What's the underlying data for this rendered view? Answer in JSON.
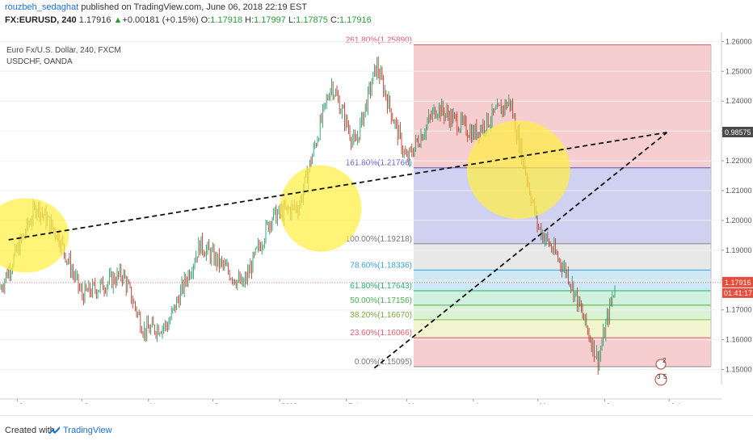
{
  "header": {
    "author": "rouzbeh_sedaghat",
    "published_text": "published on TradingView.com, June 06, 2018 22:19 EST",
    "symbol": "FX:EURUSD, 240",
    "last": "1.17916",
    "change": "+0.00181 (+0.15%)",
    "o_label": "O:",
    "o_value": "1.17918",
    "h_label": "H:",
    "h_value": "1.17997",
    "l_label": "L:",
    "l_value": "1.17875",
    "c_label": "C:",
    "c_value": "1.17916"
  },
  "legend": {
    "line1": "Euro Fx/U.S. Dollar, 240, FXCM",
    "line2": "USDCHF, OANDA"
  },
  "footer": {
    "created_with": "Created with",
    "brand": "TradingView"
  },
  "colors": {
    "up_candle": "#2a9d6a",
    "down_candle": "#c0392b",
    "highlight_circle": "#ffee44",
    "price_badge": "#e74c3c",
    "usdchf_badge": "#4a4a4a"
  },
  "chart_data": {
    "type": "candlestick",
    "symbol": "EURUSD",
    "interval": "240",
    "x_ticks": [
      "Sep",
      "Oct",
      "Nov",
      "Dec",
      "2018",
      "Feb",
      "Mar",
      "Apr",
      "May",
      "Jun",
      "Jul"
    ],
    "y_ticks": [
      "1.26000",
      "1.25000",
      "1.24000",
      "1.23000",
      "1.22000",
      "1.21000",
      "1.20000",
      "1.19000",
      "1.18000",
      "1.17000",
      "1.16000",
      "1.15000"
    ],
    "ylim": [
      1.145,
      1.262
    ],
    "last_price": 1.17916,
    "last_price_label": "1.17916",
    "countdown": "01:41:17",
    "overlay_label": "0.98575",
    "trend_path": [
      [
        "Aug 24",
        1.177
      ],
      [
        "Sep 01",
        1.19
      ],
      [
        "Sep 10",
        1.205
      ],
      [
        "Sep 20",
        1.195
      ],
      [
        "Oct 01",
        1.175
      ],
      [
        "Oct 10",
        1.178
      ],
      [
        "Oct 20",
        1.182
      ],
      [
        "Oct 30",
        1.163
      ],
      [
        "Nov 10",
        1.165
      ],
      [
        "Nov 25",
        1.192
      ],
      [
        "Dec 05",
        1.185
      ],
      [
        "Dec 15",
        1.178
      ],
      [
        "Dec 28",
        1.201
      ],
      [
        "Jan 10",
        1.205
      ],
      [
        "Jan 25",
        1.246
      ],
      [
        "Feb 05",
        1.225
      ],
      [
        "Feb 15",
        1.252
      ],
      [
        "Mar 01",
        1.22
      ],
      [
        "Mar 15",
        1.238
      ],
      [
        "Apr 01",
        1.229
      ],
      [
        "Apr 18",
        1.24
      ],
      [
        "May 01",
        1.198
      ],
      [
        "May 15",
        1.182
      ],
      [
        "May 29",
        1.153
      ],
      [
        "Jun 06",
        1.179
      ]
    ],
    "fibonacci": {
      "levels": [
        {
          "label": "261.80%(1.25890)",
          "ratio": 2.618,
          "price": 1.2589,
          "line_color": "#e05b6b",
          "fill": "#f4c5c7",
          "text_color": "#e05b6b"
        },
        {
          "label": "161.80%(1.21766)",
          "ratio": 1.618,
          "price": 1.21766,
          "line_color": "#5a55c7",
          "fill": "#c8c8ef",
          "text_color": "#5a55c7"
        },
        {
          "label": "100.00%(1.19218)",
          "ratio": 1.0,
          "price": 1.19218,
          "line_color": "#888888",
          "fill": "#e4e4e4",
          "text_color": "#777777"
        },
        {
          "label": "78.60%(1.18336)",
          "ratio": 0.786,
          "price": 1.18336,
          "line_color": "#3aa0d8",
          "fill": "#c7e4f4",
          "text_color": "#3aa0d8"
        },
        {
          "label": "61.80%(1.17643)",
          "ratio": 0.618,
          "price": 1.17643,
          "line_color": "#22b36a",
          "fill": "#c8efd7",
          "text_color": "#22b36a"
        },
        {
          "label": "50.00%(1.17156)",
          "ratio": 0.5,
          "price": 1.17156,
          "line_color": "#4caf50",
          "fill": "#d5f0cf",
          "text_color": "#4caf50"
        },
        {
          "label": "38.20%(1.16670)",
          "ratio": 0.382,
          "price": 1.1667,
          "line_color": "#8bc34a",
          "fill": "#eef3c8",
          "text_color": "#7aa83a"
        },
        {
          "label": "23.60%(1.16066)",
          "ratio": 0.236,
          "price": 1.16066,
          "line_color": "#e05b6b",
          "fill": "#f4c5c7",
          "text_color": "#e05b6b"
        },
        {
          "label": "0.00%(1.15095)",
          "ratio": 0.0,
          "price": 1.15095,
          "line_color": "#888888",
          "fill": "",
          "text_color": "#777777"
        }
      ]
    },
    "trendlines": [
      {
        "from": [
          "Aug 28",
          1.1935
        ],
        "to": [
          "Jun 30",
          1.2295
        ],
        "style": "dashed"
      },
      {
        "from": [
          "Feb 14",
          1.1505
        ],
        "to": [
          "Jun 30",
          1.2295
        ],
        "style": "dashed"
      }
    ],
    "highlights": [
      {
        "center": [
          "Sep 05",
          1.195
        ],
        "radius_days": 20,
        "radius_price": 0.0125
      },
      {
        "center": [
          "Jan 20",
          1.204
        ],
        "radius_days": 19,
        "radius_price": 0.0145
      },
      {
        "center": [
          "Apr 22",
          1.217
        ],
        "radius_days": 24,
        "radius_price": 0.0165
      }
    ],
    "event_markers": [
      "2",
      "3",
      "5"
    ]
  }
}
